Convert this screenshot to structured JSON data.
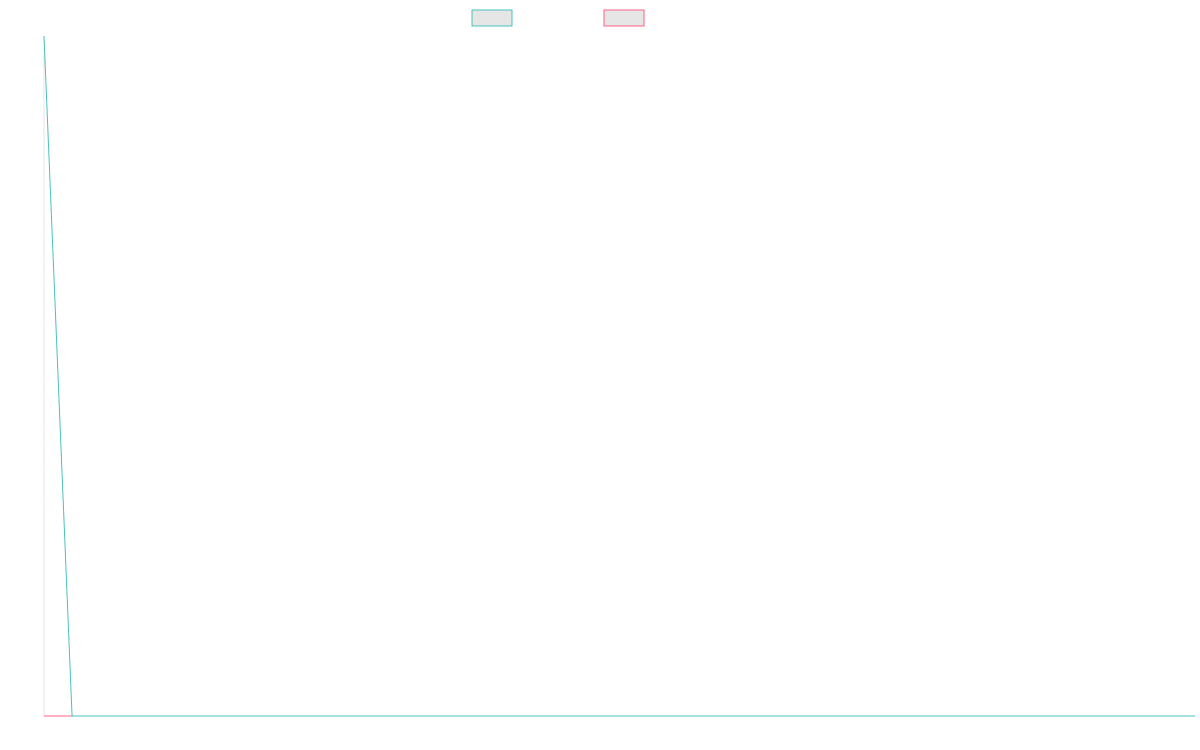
{
  "chart_data": {
    "type": "line",
    "title": "",
    "xlabel": "",
    "ylabel": "",
    "grid": false,
    "legend_position": "top-center",
    "colors": {
      "series_1": "#4bc0c0",
      "series_2": "#ff6384",
      "axis": "#e6e6e6",
      "legend_fill": "#e6e6e6"
    },
    "x": [
      0,
      1,
      2,
      3,
      4,
      5,
      6,
      7,
      8,
      9,
      10,
      11,
      12,
      13,
      14,
      15,
      16,
      17,
      18,
      19,
      20,
      21,
      22,
      23,
      24,
      25,
      26,
      27,
      28,
      29,
      30,
      31,
      32,
      33,
      34,
      35,
      36,
      37,
      38,
      39,
      40,
      41
    ],
    "xlim": [
      0,
      41
    ],
    "ylim": [
      0,
      100
    ],
    "series": [
      {
        "values": [
          100,
          0,
          0,
          0,
          0,
          0,
          0,
          0,
          0,
          0,
          0,
          0,
          0,
          0,
          0,
          0,
          0,
          0,
          0,
          0,
          0,
          0,
          0,
          0,
          0,
          0,
          0,
          0,
          0,
          0,
          0,
          0,
          0,
          0,
          0,
          0,
          0,
          0,
          0,
          0,
          0,
          0
        ]
      },
      {
        "values": [
          0,
          0,
          0,
          0,
          0,
          0,
          0,
          0,
          0,
          0,
          0,
          0,
          0,
          0,
          0,
          0,
          0,
          0,
          0,
          0,
          0,
          0,
          0,
          0,
          0,
          0,
          0,
          0,
          0,
          0,
          0,
          0,
          0,
          0,
          0,
          0,
          0,
          0,
          0,
          0,
          0,
          0
        ]
      }
    ]
  }
}
